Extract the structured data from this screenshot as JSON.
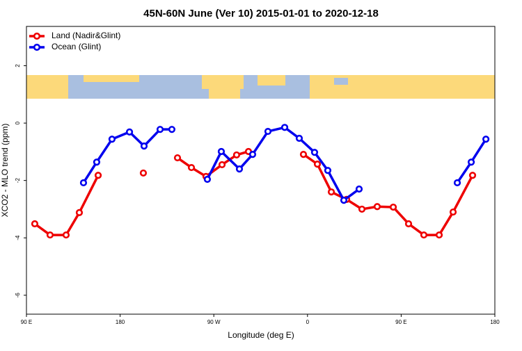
{
  "chart_data": {
    "type": "line",
    "title": "45N-60N June (Ver 10)   2015-01-01 to 2020-12-18",
    "x_label": "Longitude (deg E)",
    "y_label": "XCO2 - MLO trend (ppm)",
    "xlim": [
      90,
      540
    ],
    "ylim": [
      -6.66,
      3.37
    ],
    "xticks": [
      {
        "value": 90,
        "label": "90 E"
      },
      180,
      {
        "value": 270,
        "label": "90 W"
      },
      {
        "value": 360,
        "label": "0"
      },
      {
        "value": 450,
        "label": "90 E"
      },
      {
        "value": 540,
        "label": "180"
      }
    ],
    "yticks": [
      -6,
      -4,
      -2,
      0,
      2
    ],
    "legend": "top-left",
    "series": [
      {
        "name": "Land (Nadir&Glint)",
        "color": "#ee0000",
        "x": [
          98.0,
          112.7,
          128.1,
          140.8,
          158.9,
          null,
          202.3,
          null,
          235.1,
          248.5,
          262.5,
          277.9,
          291.9,
          303.3,
          null,
          356.1,
          369.5,
          382.9,
          397.6,
          412.3,
          427.0,
          442.4,
          457.1,
          471.8,
          486.5,
          499.9,
          518.6
        ],
        "values": [
          -3.51,
          -3.9,
          -3.9,
          -3.12,
          -1.82,
          null,
          -1.74,
          null,
          -1.21,
          -1.55,
          -1.86,
          -1.45,
          -1.11,
          -0.99,
          null,
          -1.09,
          -1.43,
          -2.4,
          -2.66,
          -3.0,
          -2.91,
          -2.93,
          -3.51,
          -3.9,
          -3.9,
          -3.1,
          -1.82
        ]
      },
      {
        "name": "Ocean (Glint)",
        "color": "#0000ee",
        "x": [
          144.8,
          157.5,
          172.2,
          189.0,
          203.0,
          218.4,
          229.7,
          null,
          263.8,
          277.2,
          294.6,
          307.3,
          322.0,
          338.1,
          352.1,
          366.8,
          379.5,
          394.9,
          409.6,
          null,
          503.9,
          517.3,
          531.4
        ],
        "values": [
          -2.08,
          -1.36,
          -0.56,
          -0.31,
          -0.8,
          -0.22,
          -0.22,
          null,
          -1.96,
          -0.99,
          -1.6,
          -1.09,
          -0.29,
          -0.15,
          -0.53,
          -1.02,
          -1.65,
          -2.69,
          -2.3,
          null,
          -2.08,
          -1.36,
          -0.56
        ]
      }
    ]
  }
}
